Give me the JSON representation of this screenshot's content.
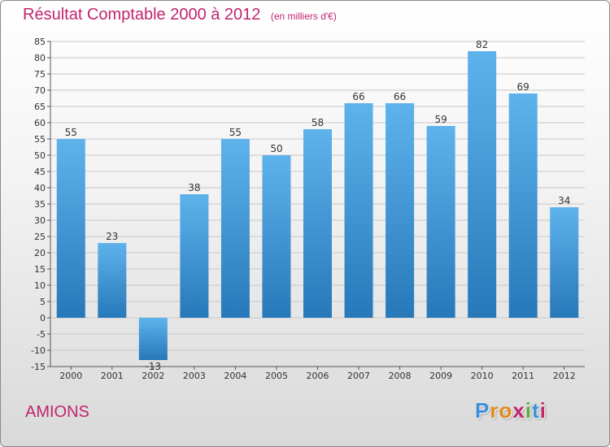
{
  "title": "Résultat Comptable 2000 à 2012",
  "subtitle": "(en milliers d'€)",
  "commune": "AMIONS",
  "logo": {
    "letters": [
      "P",
      "r",
      "o",
      "x",
      "i",
      "t",
      "i"
    ]
  },
  "colors": {
    "title": "#c0256e",
    "bar_top": "#5eb3ec",
    "bar_bottom": "#2778b9",
    "grid": "#c8c8c8",
    "logo": [
      "#3a8fd8",
      "#e08a1e",
      "#e08a1e",
      "#c0256e",
      "#5aaa3a",
      "#3a8fd8",
      "#c0256e"
    ]
  },
  "chart_data": {
    "type": "bar",
    "title": "Résultat Comptable 2000 à 2012",
    "ylabel": "(en milliers d'€)",
    "xlabel": "",
    "categories": [
      "2000",
      "2001",
      "2002",
      "2003",
      "2004",
      "2005",
      "2006",
      "2007",
      "2008",
      "2009",
      "2010",
      "2011",
      "2012"
    ],
    "values": [
      55,
      23,
      -13,
      38,
      55,
      50,
      58,
      66,
      66,
      59,
      82,
      69,
      34
    ],
    "ylim": [
      -15,
      85
    ],
    "yticks": [
      -15,
      -10,
      -5,
      0,
      5,
      10,
      15,
      20,
      25,
      30,
      35,
      40,
      45,
      50,
      55,
      60,
      65,
      70,
      75,
      80,
      85
    ],
    "grid": true
  }
}
